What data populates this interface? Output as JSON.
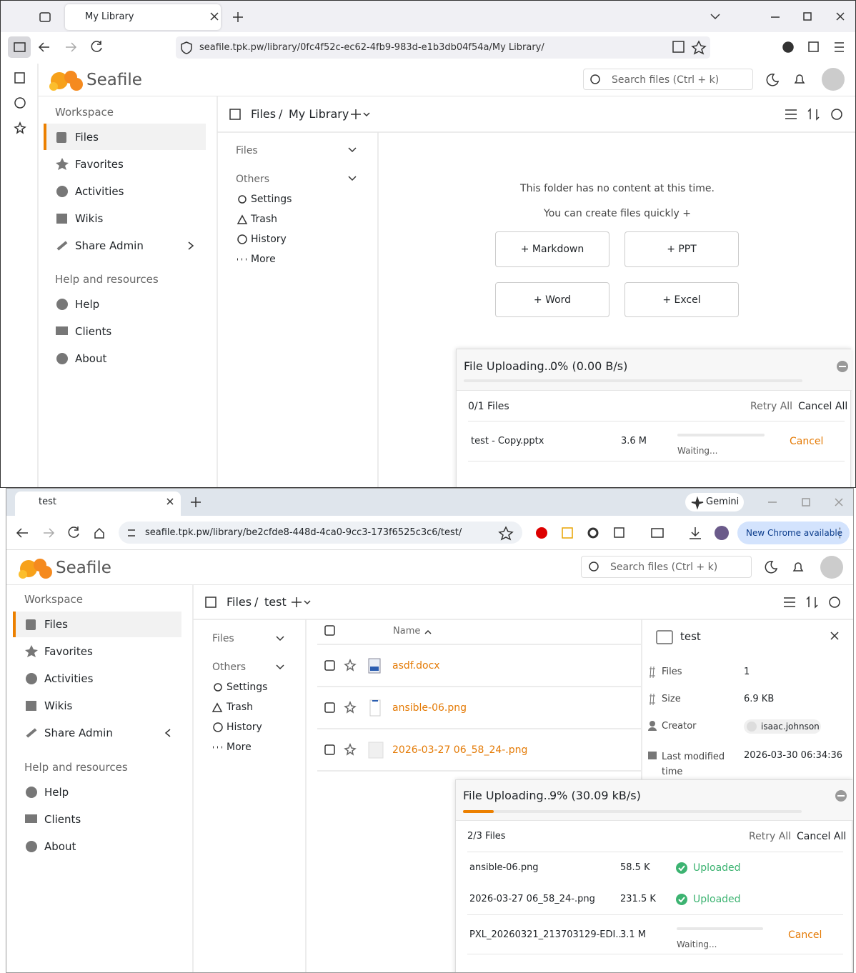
{
  "top_window": {
    "tab_title": "My Library",
    "url": "seafile.tpk.pw/library/0fc4f52c-ec62-4fb9-983d-e1b3db04f54a/My Library/",
    "logo": "Seafile",
    "search_placeholder": "Search files (Ctrl + k)",
    "sidebar": {
      "workspace": "Workspace",
      "items": [
        "Files",
        "Favorites",
        "Activities",
        "Wikis",
        "Share Admin"
      ],
      "help_heading": "Help and resources",
      "help_items": [
        "Help",
        "Clients",
        "About"
      ]
    },
    "breadcrumb": {
      "root": "Files",
      "separator": "/",
      "current": "My Library"
    },
    "tree": {
      "files": "Files",
      "others": "Others",
      "items": [
        "Settings",
        "Trash",
        "History",
        "More"
      ]
    },
    "empty": {
      "message": "This folder has no content at this time.",
      "hint": "You can create files quickly +",
      "buttons": [
        "+ Markdown",
        "+ PPT",
        "+ Word",
        "+ Excel"
      ]
    },
    "upload": {
      "title": "File Uploading...",
      "progress": "0% (0.00 B/s)",
      "count": "0/1 Files",
      "retry": "Retry All",
      "cancel_all": "Cancel All",
      "rows": [
        {
          "name": "test - Copy.pptx",
          "size": "3.6 M",
          "status": "Waiting...",
          "action": "Cancel"
        }
      ]
    }
  },
  "bottom_window": {
    "tab_title": "test",
    "gemini": "Gemini",
    "url": "seafile.tpk.pw/library/be2cfde8-448d-4ca0-9cc3-173f6525c3c6/test/",
    "update": "New Chrome available",
    "logo": "Seafile",
    "search_placeholder": "Search files (Ctrl + k)",
    "sidebar": {
      "workspace": "Workspace",
      "items": [
        "Files",
        "Favorites",
        "Activities",
        "Wikis",
        "Share Admin"
      ],
      "help_heading": "Help and resources",
      "help_items": [
        "Help",
        "Clients",
        "About"
      ]
    },
    "breadcrumb": {
      "root": "Files",
      "separator": "/",
      "current": "test"
    },
    "tree": {
      "files": "Files",
      "others": "Others",
      "items": [
        "Settings",
        "Trash",
        "History",
        "More"
      ]
    },
    "list": {
      "name_header": "Name",
      "files": [
        "asdf.docx",
        "ansible-06.png",
        "2026-03-27 06_58_24-.png"
      ]
    },
    "details": {
      "title": "test",
      "rows": [
        {
          "label": "Files",
          "value": "1"
        },
        {
          "label": "Size",
          "value": "6.9 KB"
        },
        {
          "label": "Creator",
          "value": "isaac.johnson"
        },
        {
          "label": "Last modified time",
          "value": "2026-03-30 06:34:36"
        }
      ]
    },
    "upload": {
      "title": "File Uploading...",
      "progress": "9% (30.09 kB/s)",
      "count": "2/3 Files",
      "retry": "Retry All",
      "cancel_all": "Cancel All",
      "rows": [
        {
          "name": "ansible-06.png",
          "size": "58.5 K",
          "status": "Uploaded"
        },
        {
          "name": "2026-03-27 06_58_24-.png",
          "size": "231.5 K",
          "status": "Uploaded"
        },
        {
          "name": "PXL_20260321_213703129-EDI...",
          "size": "3.1 M",
          "status": "Waiting...",
          "action": "Cancel"
        }
      ]
    }
  }
}
